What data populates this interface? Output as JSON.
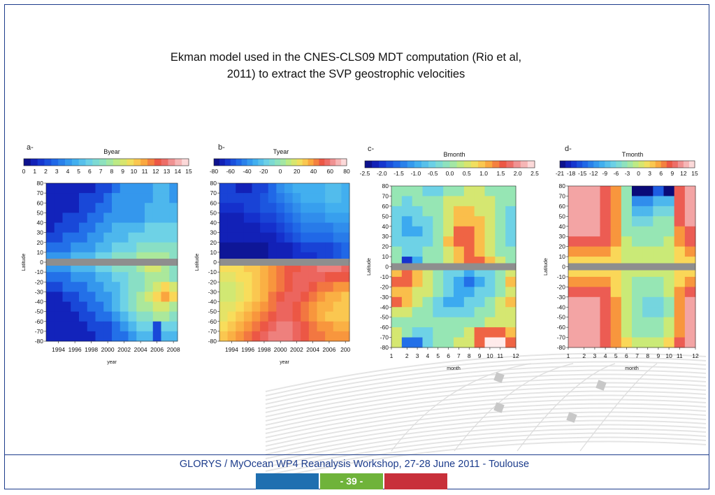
{
  "title": "Ekman model used in the CNES-CLS09 MDT computation (Rio et al,\n2011) to extract the SVP  geostrophic velocities",
  "footer": {
    "text": "GLORYS / MyOcean WP4 Reanalysis Workshop, 27-28 June 2011 - Toulouse",
    "page": "- 39 -",
    "colors": [
      "#1f6fb0",
      "#6fb33a",
      "#c8303a"
    ]
  },
  "chart_data": [
    {
      "panel_label": "a-",
      "type": "heatmap",
      "title": "Byear",
      "xlabel": "year",
      "ylabel": "Latitude",
      "colorbar_ticks": [
        "0",
        "1",
        "2",
        "3",
        "4",
        "5",
        "6",
        "7",
        "8",
        "9",
        "10",
        "11",
        "12",
        "13",
        "14",
        "15"
      ],
      "vmin": 0,
      "vmax": 15,
      "x_ticks": [
        "1994",
        "1996",
        "1998",
        "2000",
        "2002",
        "2004",
        "2006",
        "2008"
      ],
      "y_ticks": [
        "80",
        "70",
        "60",
        "50",
        "40",
        "30",
        "20",
        "10",
        "0",
        "-10",
        "-20",
        "-30",
        "-40",
        "-50",
        "-60",
        "-70",
        "-80"
      ],
      "x": [
        1993,
        1994,
        1995,
        1996,
        1997,
        1998,
        1999,
        2000,
        2001,
        2002,
        2003,
        2004,
        2005,
        2006,
        2007,
        2008
      ],
      "lat_bands": [
        75,
        65,
        55,
        45,
        35,
        25,
        15,
        5,
        -5,
        -15,
        -25,
        -35,
        -45,
        -55,
        -65,
        -75
      ],
      "values": [
        [
          1,
          1,
          1,
          1,
          1,
          1,
          2,
          2,
          3,
          4,
          4,
          4,
          4,
          5,
          5,
          4
        ],
        [
          1,
          1,
          1,
          1,
          2,
          2,
          2,
          3,
          4,
          4,
          4,
          4,
          4,
          5,
          5,
          4
        ],
        [
          1,
          1,
          1,
          1,
          2,
          2,
          3,
          3,
          4,
          4,
          4,
          4,
          5,
          5,
          5,
          5
        ],
        [
          1,
          1,
          2,
          2,
          2,
          3,
          3,
          4,
          4,
          4,
          4,
          4,
          5,
          5,
          5,
          5
        ],
        [
          1,
          2,
          2,
          2,
          3,
          3,
          4,
          4,
          5,
          5,
          5,
          5,
          6,
          6,
          6,
          6
        ],
        [
          2,
          2,
          3,
          3,
          3,
          4,
          4,
          5,
          5,
          5,
          6,
          6,
          6,
          6,
          6,
          6
        ],
        [
          3,
          3,
          3,
          4,
          4,
          4,
          5,
          5,
          6,
          6,
          6,
          7,
          7,
          7,
          7,
          7
        ],
        [
          4,
          4,
          4,
          5,
          5,
          5,
          6,
          6,
          7,
          7,
          7,
          8,
          8,
          8,
          8,
          7
        ],
        [
          4,
          4,
          4,
          5,
          5,
          5,
          6,
          6,
          7,
          7,
          7,
          8,
          9,
          9,
          8,
          7
        ],
        [
          3,
          3,
          3,
          4,
          4,
          4,
          5,
          5,
          6,
          6,
          7,
          7,
          8,
          8,
          8,
          7
        ],
        [
          2,
          2,
          3,
          3,
          3,
          4,
          4,
          5,
          5,
          6,
          7,
          7,
          8,
          9,
          10,
          9
        ],
        [
          1,
          1,
          2,
          2,
          3,
          3,
          4,
          4,
          5,
          6,
          7,
          8,
          9,
          10,
          11,
          10
        ],
        [
          1,
          1,
          1,
          2,
          2,
          3,
          3,
          4,
          5,
          6,
          7,
          8,
          8,
          9,
          9,
          8
        ],
        [
          1,
          1,
          1,
          1,
          2,
          2,
          3,
          3,
          4,
          5,
          6,
          7,
          7,
          8,
          8,
          7
        ],
        [
          1,
          1,
          1,
          1,
          1,
          2,
          2,
          2,
          3,
          4,
          5,
          6,
          6,
          2,
          6,
          6
        ],
        [
          1,
          1,
          1,
          1,
          1,
          1,
          2,
          2,
          3,
          3,
          4,
          5,
          5,
          2,
          5,
          5
        ]
      ]
    },
    {
      "panel_label": "b-",
      "type": "heatmap",
      "title": "Tyear",
      "xlabel": "year",
      "ylabel": "Latitude",
      "colorbar_ticks": [
        "-80",
        "-60",
        "-40",
        "-20",
        "0",
        "20",
        "40",
        "60",
        "80"
      ],
      "vmin": -80,
      "vmax": 80,
      "x_ticks": [
        "1994",
        "1996",
        "1998",
        "2000",
        "2002",
        "2004",
        "2006",
        "200"
      ],
      "y_ticks": [
        "80",
        "70",
        "60",
        "50",
        "40",
        "30",
        "20",
        "10",
        "0",
        "-10",
        "-20",
        "-30",
        "-40",
        "-50",
        "-60",
        "-70",
        "-80"
      ],
      "x": [
        1993,
        1994,
        1995,
        1996,
        1997,
        1998,
        1999,
        2000,
        2001,
        2002,
        2003,
        2004,
        2005,
        2006,
        2007,
        2008
      ],
      "lat_bands": [
        75,
        65,
        55,
        45,
        35,
        25,
        15,
        5,
        -5,
        -15,
        -25,
        -35,
        -45,
        -55,
        -65,
        -75
      ],
      "values": [
        [
          -60,
          -60,
          -70,
          -70,
          -60,
          -60,
          -50,
          -40,
          -35,
          -30,
          -30,
          -30,
          -30,
          -25,
          -25,
          -30
        ],
        [
          -60,
          -60,
          -60,
          -60,
          -60,
          -55,
          -50,
          -45,
          -40,
          -35,
          -30,
          -30,
          -30,
          -25,
          -25,
          -30
        ],
        [
          -65,
          -65,
          -65,
          -60,
          -60,
          -55,
          -55,
          -50,
          -45,
          -40,
          -35,
          -35,
          -35,
          -30,
          -30,
          -30
        ],
        [
          -70,
          -70,
          -70,
          -65,
          -65,
          -60,
          -60,
          -55,
          -50,
          -45,
          -40,
          -40,
          -40,
          -35,
          -35,
          -35
        ],
        [
          -70,
          -70,
          -70,
          -70,
          -70,
          -65,
          -65,
          -60,
          -55,
          -50,
          -45,
          -45,
          -45,
          -45,
          -40,
          -40
        ],
        [
          -70,
          -70,
          -70,
          -70,
          -70,
          -70,
          -70,
          -65,
          -60,
          -55,
          -50,
          -50,
          -50,
          -50,
          -45,
          -45
        ],
        [
          -75,
          -75,
          -75,
          -75,
          -75,
          -75,
          -70,
          -70,
          -70,
          -65,
          -60,
          -60,
          -60,
          -60,
          -55,
          -50
        ],
        [
          -75,
          -75,
          -75,
          -75,
          -75,
          -75,
          -70,
          -70,
          -70,
          -65,
          -65,
          -65,
          -60,
          -60,
          -55,
          -50
        ],
        [
          25,
          25,
          25,
          30,
          30,
          35,
          40,
          45,
          50,
          50,
          55,
          55,
          60,
          60,
          60,
          55
        ],
        [
          20,
          20,
          25,
          25,
          30,
          35,
          40,
          45,
          50,
          55,
          55,
          55,
          55,
          50,
          50,
          50
        ],
        [
          15,
          15,
          20,
          25,
          30,
          35,
          40,
          45,
          50,
          55,
          55,
          50,
          45,
          45,
          40,
          40
        ],
        [
          15,
          15,
          20,
          25,
          30,
          35,
          45,
          50,
          55,
          55,
          50,
          45,
          40,
          35,
          35,
          30
        ],
        [
          20,
          20,
          25,
          30,
          35,
          40,
          45,
          55,
          55,
          50,
          45,
          40,
          35,
          35,
          30,
          30
        ],
        [
          20,
          25,
          30,
          35,
          40,
          45,
          50,
          55,
          55,
          50,
          45,
          40,
          35,
          30,
          30,
          30
        ],
        [
          25,
          30,
          35,
          40,
          45,
          50,
          55,
          60,
          60,
          55,
          50,
          45,
          40,
          40,
          35,
          35
        ],
        [
          30,
          35,
          40,
          45,
          50,
          55,
          60,
          60,
          60,
          55,
          50,
          45,
          45,
          40,
          40,
          40
        ]
      ]
    },
    {
      "panel_label": "c-",
      "type": "heatmap",
      "title": "Bmonth",
      "xlabel": "month",
      "ylabel": "Latitude",
      "colorbar_ticks": [
        "-2.5",
        "-2.0",
        "-1.5",
        "-1.0",
        "-0.5",
        "0.0",
        "0.5",
        "1.0",
        "1.5",
        "2.0",
        "2.5"
      ],
      "vmin": -2.5,
      "vmax": 2.5,
      "x_ticks": [
        "1",
        "2",
        "3",
        "4",
        "5",
        "6",
        "7",
        "8",
        "9",
        "10",
        "11",
        "12"
      ],
      "y_ticks": [
        "80",
        "70",
        "60",
        "50",
        "40",
        "30",
        "20",
        "10",
        "0",
        "-10",
        "-20",
        "-30",
        "-40",
        "-50",
        "-60",
        "-70",
        "-80"
      ],
      "x": [
        1,
        2,
        3,
        4,
        5,
        6,
        7,
        8,
        9,
        10,
        11,
        12
      ],
      "lat_bands": [
        75,
        65,
        55,
        45,
        35,
        25,
        15,
        5,
        -5,
        -15,
        -25,
        -35,
        -45,
        -55,
        -65,
        -75
      ],
      "values": [
        [
          0.0,
          0.0,
          0.0,
          -0.5,
          -0.5,
          0.0,
          0.0,
          0.5,
          0.5,
          0.0,
          0.0,
          0.0
        ],
        [
          0.0,
          -0.5,
          0.0,
          0.0,
          0.0,
          0.5,
          0.5,
          0.5,
          0.5,
          0.5,
          0.0,
          0.0
        ],
        [
          -0.5,
          -0.5,
          -0.5,
          0.0,
          0.0,
          0.5,
          1.0,
          1.0,
          0.5,
          0.5,
          0.0,
          -0.5
        ],
        [
          -0.5,
          -1.0,
          -0.5,
          -0.5,
          0.0,
          0.5,
          1.0,
          1.0,
          1.0,
          0.5,
          0.0,
          -0.5
        ],
        [
          -0.5,
          -1.0,
          -1.0,
          -0.5,
          0.0,
          0.5,
          1.5,
          1.5,
          1.0,
          0.5,
          0.0,
          -0.5
        ],
        [
          -0.5,
          -0.5,
          -0.5,
          -0.5,
          0.0,
          1.0,
          1.5,
          1.5,
          1.0,
          0.5,
          0.0,
          -0.5
        ],
        [
          0.0,
          -0.5,
          -0.5,
          0.0,
          0.0,
          0.5,
          1.0,
          1.5,
          1.0,
          0.5,
          0.0,
          0.0
        ],
        [
          0.0,
          -2.0,
          -1.0,
          0.0,
          0.0,
          0.5,
          1.0,
          1.5,
          1.5,
          1.0,
          0.5,
          0.0
        ],
        [
          1.0,
          1.5,
          1.0,
          0.5,
          0.0,
          -0.5,
          -0.5,
          -1.0,
          -0.5,
          -0.5,
          0.0,
          0.5
        ],
        [
          1.5,
          1.5,
          1.0,
          0.5,
          0.0,
          -0.5,
          -1.0,
          -1.5,
          -1.0,
          -0.5,
          0.0,
          1.0
        ],
        [
          1.0,
          1.0,
          0.5,
          0.5,
          0.0,
          -0.5,
          -1.0,
          -1.0,
          -0.5,
          -0.5,
          0.0,
          0.5
        ],
        [
          1.5,
          1.0,
          0.5,
          0.0,
          -0.5,
          -1.0,
          -1.0,
          -0.5,
          -0.5,
          0.0,
          0.5,
          1.0
        ],
        [
          0.5,
          0.5,
          0.0,
          0.0,
          -0.5,
          -0.5,
          -0.5,
          -0.5,
          0.0,
          0.0,
          0.5,
          0.5
        ],
        [
          0.0,
          0.0,
          0.0,
          0.0,
          0.0,
          0.0,
          0.0,
          0.0,
          0.0,
          0.5,
          0.5,
          0.5
        ],
        [
          0.5,
          0.0,
          -0.5,
          -0.5,
          0.0,
          0.0,
          0.0,
          0.5,
          1.5,
          1.5,
          1.5,
          1.0
        ],
        [
          0.5,
          -1.5,
          -1.5,
          -0.5,
          0.0,
          0.0,
          0.5,
          0.5,
          1.5,
          2.5,
          2.5,
          1.5
        ]
      ]
    },
    {
      "panel_label": "d-",
      "type": "heatmap",
      "title": "Tmonth",
      "xlabel": "month",
      "ylabel": "Latitude",
      "colorbar_ticks": [
        "-21",
        "-18",
        "-15",
        "-12",
        "-9",
        "-6",
        "-3",
        "0",
        "3",
        "6",
        "9",
        "12",
        "15"
      ],
      "vmin": -21,
      "vmax": 15,
      "x_ticks": [
        "1",
        "2",
        "3",
        "4",
        "5",
        "6",
        "7",
        "8",
        "9",
        "10",
        "11",
        "12"
      ],
      "y_ticks": [
        "80",
        "70",
        "60",
        "50",
        "40",
        "30",
        "20",
        "10",
        "0",
        "-10",
        "-20",
        "-30",
        "-40",
        "-50",
        "-60",
        "-70",
        "-80"
      ],
      "x": [
        1,
        2,
        3,
        4,
        5,
        6,
        7,
        8,
        9,
        10,
        11,
        12
      ],
      "lat_bands": [
        75,
        65,
        55,
        45,
        35,
        25,
        15,
        5,
        -5,
        -15,
        -25,
        -35,
        -45,
        -55,
        -65,
        -75
      ],
      "values": [
        [
          12,
          12,
          12,
          9,
          6,
          -3,
          -21,
          -21,
          -15,
          -21,
          9,
          12
        ],
        [
          12,
          12,
          12,
          9,
          6,
          -3,
          -12,
          -12,
          -9,
          -9,
          9,
          12
        ],
        [
          12,
          12,
          12,
          9,
          6,
          -3,
          -9,
          -9,
          -6,
          -6,
          9,
          12
        ],
        [
          12,
          12,
          12,
          9,
          6,
          -3,
          -6,
          -6,
          -3,
          -3,
          9,
          12
        ],
        [
          12,
          12,
          12,
          9,
          6,
          -3,
          -3,
          -3,
          -3,
          -3,
          6,
          9
        ],
        [
          9,
          9,
          9,
          9,
          6,
          0,
          -3,
          -3,
          -3,
          0,
          6,
          9
        ],
        [
          6,
          6,
          6,
          6,
          3,
          0,
          0,
          0,
          0,
          0,
          3,
          6
        ],
        [
          3,
          3,
          3,
          3,
          3,
          0,
          0,
          0,
          0,
          0,
          3,
          3
        ],
        [
          3,
          3,
          3,
          3,
          3,
          0,
          0,
          0,
          0,
          0,
          3,
          3
        ],
        [
          6,
          6,
          6,
          6,
          3,
          0,
          -3,
          -3,
          -3,
          0,
          3,
          6
        ],
        [
          9,
          9,
          9,
          9,
          3,
          0,
          -3,
          -3,
          -3,
          0,
          6,
          9
        ],
        [
          12,
          12,
          12,
          9,
          6,
          0,
          -3,
          -6,
          -6,
          -3,
          6,
          12
        ],
        [
          12,
          12,
          12,
          9,
          6,
          0,
          -3,
          -6,
          -6,
          -3,
          6,
          12
        ],
        [
          12,
          12,
          12,
          9,
          6,
          0,
          -3,
          -3,
          -3,
          0,
          6,
          12
        ],
        [
          12,
          12,
          12,
          9,
          6,
          0,
          -3,
          -3,
          -3,
          0,
          6,
          12
        ],
        [
          12,
          12,
          12,
          9,
          6,
          3,
          0,
          0,
          0,
          3,
          9,
          12
        ]
      ]
    }
  ]
}
